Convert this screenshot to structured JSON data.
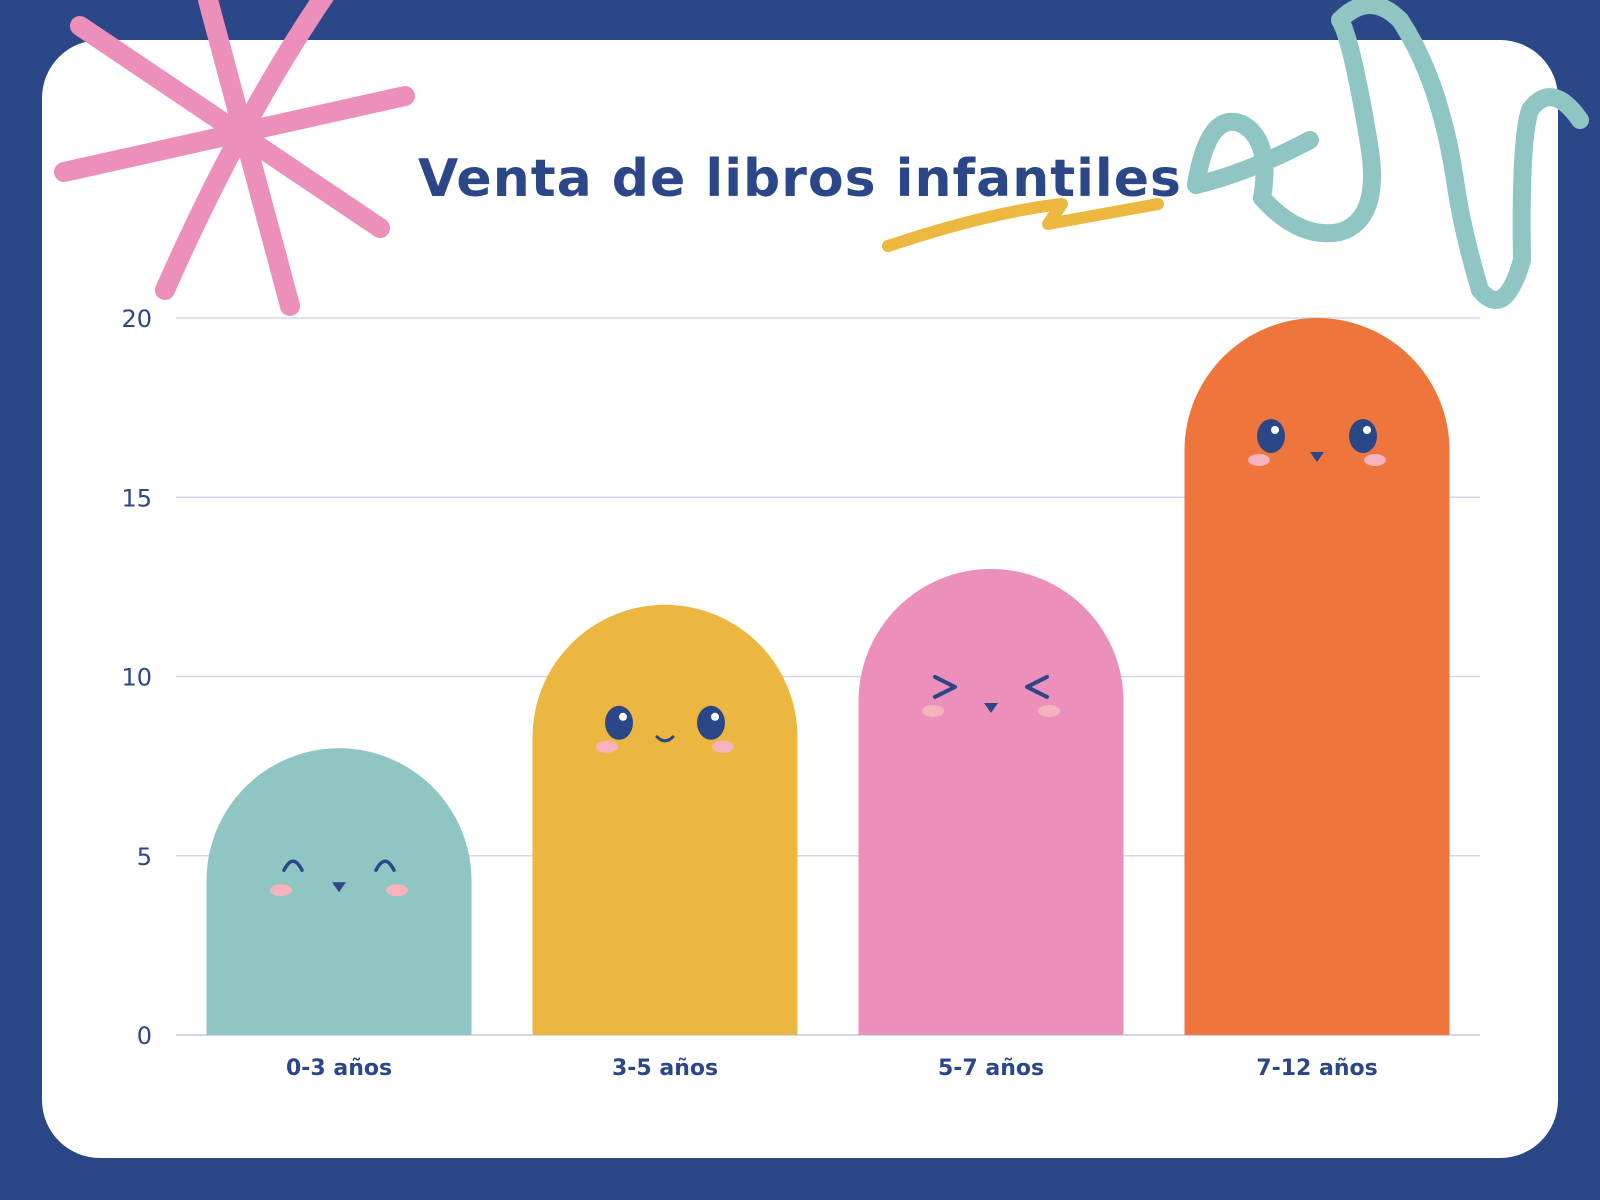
{
  "colors": {
    "background": "#2b4787",
    "card": "#ffffff",
    "text": "#2b4787",
    "grid": "#d4d6ea",
    "decor_pink": "#ec8fbb",
    "decor_teal": "#8fc5c2",
    "decor_yellow": "#edb83f",
    "blush": "#f7b3bd"
  },
  "chart_data": {
    "type": "bar",
    "title": "Venta de libros infantiles",
    "categories": [
      "0-3 años",
      "3-5 años",
      "5-7 años",
      "7-12 años"
    ],
    "values": [
      8,
      12,
      13,
      20
    ],
    "colors": [
      "#8fc5c2",
      "#ecb740",
      "#ec8fbb",
      "#ee763c"
    ],
    "faces": [
      "happy-closed-eyes",
      "smile",
      "squint",
      "neutral"
    ],
    "ylim": [
      0,
      20
    ],
    "yticks": [
      0,
      5,
      10,
      15,
      20
    ],
    "xlabel": "",
    "ylabel": "",
    "grid": true
  }
}
